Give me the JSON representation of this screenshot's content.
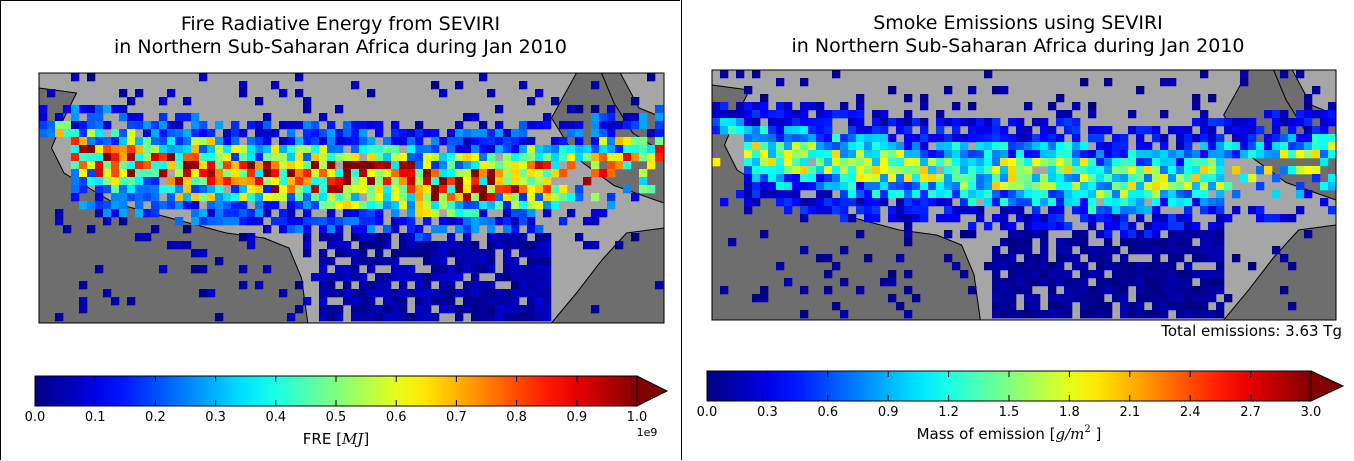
{
  "chart_data": [
    {
      "type": "heatmap",
      "title_line1": "Fire Radiative Energy from SEVIRI",
      "title_line2": "in Northern Sub-Saharan Africa during Jan 2010",
      "colorbar": {
        "label": "FRE [",
        "label_math": "MJ",
        "label_end": "]",
        "min": 0.0,
        "max": 1.0,
        "ticks": [
          "0.0",
          "0.1",
          "0.2",
          "0.3",
          "0.4",
          "0.5",
          "0.6",
          "0.7",
          "0.8",
          "0.9",
          "1.0"
        ],
        "offset_text": "1e9",
        "extend": "max",
        "colormap": "jet"
      },
      "colors": {
        "land": "#a6a6a6",
        "ocean": "#6e6e6e"
      },
      "seed": 7
    },
    {
      "type": "heatmap",
      "title_line1": "Smoke Emissions using SEVIRI",
      "title_line2": "in Northern Sub-Saharan Africa during Jan 2010",
      "annotation": "Total emissions: 3.63 Tg",
      "colorbar": {
        "label": "Mass of emission [",
        "label_math": "g/m",
        "label_sup": "2",
        "label_end": "]",
        "min": 0.0,
        "max": 3.0,
        "ticks": [
          "0.0",
          "0.3",
          "0.6",
          "0.9",
          "1.2",
          "1.5",
          "1.8",
          "2.1",
          "2.4",
          "2.7",
          "3.0"
        ],
        "extend": "max",
        "colormap": "jet"
      },
      "colors": {
        "land": "#a6a6a6",
        "ocean": "#6e6e6e"
      },
      "seed": 19
    }
  ]
}
